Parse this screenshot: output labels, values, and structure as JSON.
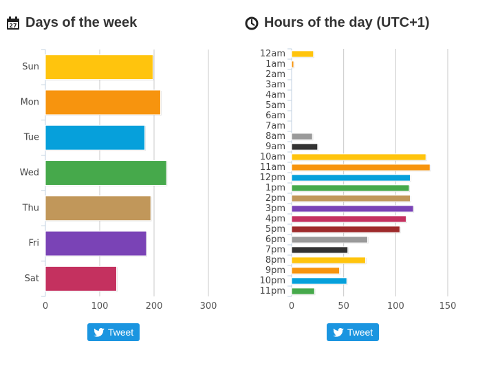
{
  "chart_data": [
    {
      "type": "bar",
      "orientation": "horizontal",
      "title": "Days of the week",
      "categories": [
        "Sun",
        "Mon",
        "Tue",
        "Wed",
        "Thu",
        "Fri",
        "Sat"
      ],
      "values": [
        198,
        212,
        183,
        223,
        194,
        186,
        131
      ],
      "colors": [
        "#ffc40d",
        "#f7940e",
        "#06a0db",
        "#46a94b",
        "#c1975a",
        "#7a43b6",
        "#c4315f"
      ],
      "xticks": [
        0,
        100,
        200,
        300
      ],
      "xlim": [
        0,
        300
      ],
      "grid": true,
      "tweet_label": "Tweet"
    },
    {
      "type": "bar",
      "orientation": "horizontal",
      "title": "Hours of the day (UTC+1)",
      "categories": [
        "12am",
        "1am",
        "2am",
        "3am",
        "4am",
        "5am",
        "6am",
        "7am",
        "8am",
        "9am",
        "10am",
        "11am",
        "12pm",
        "1pm",
        "2pm",
        "3pm",
        "4pm",
        "5pm",
        "6pm",
        "7pm",
        "8pm",
        "9pm",
        "10pm",
        "11pm"
      ],
      "values": [
        21,
        2,
        0,
        0,
        0,
        0,
        0,
        0,
        20,
        25,
        129,
        133,
        114,
        113,
        114,
        117,
        110,
        104,
        73,
        54,
        71,
        46,
        53,
        22
      ],
      "colors": [
        "#ffc40d",
        "#f7940e",
        "#06a0db",
        "#46a94b",
        "#c1975a",
        "#7a43b6",
        "#c4315f",
        "#9e2a2b",
        "#9a9a9a",
        "#333333",
        "#ffc40d",
        "#f7940e",
        "#06a0db",
        "#46a94b",
        "#c1975a",
        "#7a43b6",
        "#c4315f",
        "#9e2a2b",
        "#9a9a9a",
        "#333333",
        "#ffc40d",
        "#f7940e",
        "#06a0db",
        "#46a94b"
      ],
      "xticks": [
        0,
        50,
        100,
        150
      ],
      "xlim": [
        0,
        150
      ],
      "grid": true,
      "tweet_label": "Tweet"
    }
  ]
}
